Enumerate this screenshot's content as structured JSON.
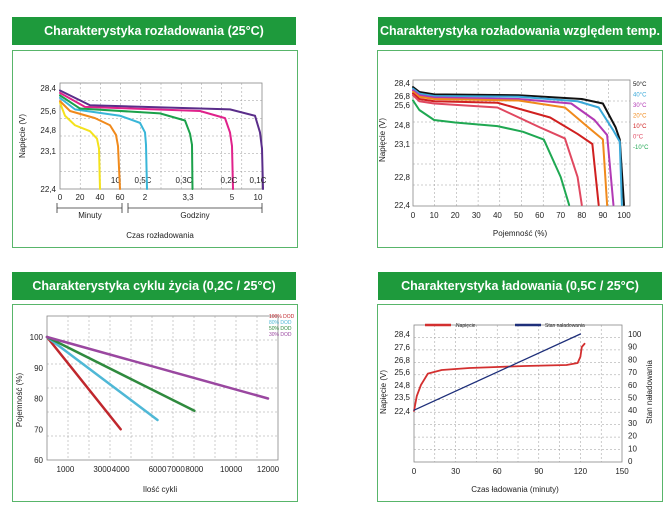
{
  "chart_data": [
    {
      "type": "line",
      "title": "Charakterystyka rozładowania (25°C)",
      "ylabel": "Napięcie (V)",
      "xlabel": "Czas rozładowania",
      "yticks": [
        "28,4",
        "25,6",
        "24,8",
        "23,1",
        "22,4"
      ],
      "xticks_minutes": [
        "0",
        "20",
        "40",
        "60"
      ],
      "xticks_hours": [
        "2",
        "3,3",
        "5",
        "10"
      ],
      "xgroups": [
        "Minuty",
        "Godziny"
      ],
      "grid": true,
      "series": [
        {
          "name": "1C",
          "color": "#f4e21c",
          "points": [
            [
              0,
              26.6
            ],
            [
              5,
              25.4
            ],
            [
              15,
              25.0
            ],
            [
              30,
              24.7
            ],
            [
              37,
              24.1
            ],
            [
              39,
              23.3
            ],
            [
              40,
              22.4
            ]
          ]
        },
        {
          "name": "0,5C",
          "color": "#f08a1c",
          "points": [
            [
              0,
              26.8
            ],
            [
              10,
              25.6
            ],
            [
              35,
              25.3
            ],
            [
              50,
              25.0
            ],
            [
              56,
              24.4
            ],
            [
              58,
              23.5
            ],
            [
              60,
              22.4
            ]
          ]
        },
        {
          "name": "0,3C",
          "color": "#39b6d8",
          "points": [
            [
              0,
              27.2
            ],
            [
              15,
              25.8
            ],
            [
              60,
              25.4
            ],
            [
              80,
              25.1
            ],
            [
              85,
              24.6
            ],
            [
              86,
              23.6
            ],
            [
              87,
              22.4
            ]
          ]
        },
        {
          "name": "0,2C",
          "color": "#1ba14a",
          "points": [
            [
              0,
              27.5
            ],
            [
              20,
              25.9
            ],
            [
              100,
              25.5
            ],
            [
              125,
              25.2
            ],
            [
              130,
              24.5
            ],
            [
              132,
              23.6
            ],
            [
              132.5,
              22.4
            ]
          ]
        },
        {
          "name": "0,2C",
          "color": "#e0228b",
          "points": [
            [
              0,
              27.8
            ],
            [
              25,
              26.1
            ],
            [
              140,
              25.6
            ],
            [
              165,
              25.3
            ],
            [
              170,
              24.6
            ],
            [
              172,
              23.5
            ],
            [
              173,
              22.4
            ]
          ]
        },
        {
          "name": "0,1C",
          "color": "#5a2d8a",
          "points": [
            [
              0,
              28.1
            ],
            [
              30,
              26.3
            ],
            [
              170,
              25.8
            ],
            [
              195,
              25.4
            ],
            [
              200,
              24.6
            ],
            [
              202,
              23.3
            ],
            [
              203,
              22.4
            ]
          ]
        }
      ]
    },
    {
      "type": "line",
      "title": "Charakterystyka rozładowania względem temp.",
      "ylabel": "Napięcie (V)",
      "xlabel": "Pojemność (%)",
      "yticks": [
        "28,4",
        "26,8",
        "25,6",
        "24,8",
        "23,1",
        "22,8",
        "22,4"
      ],
      "xticks": [
        "0",
        "10",
        "20",
        "30",
        "40",
        "50",
        "60",
        "70",
        "80",
        "90",
        "100"
      ],
      "ylim": [
        22.4,
        28.4
      ],
      "xlim": [
        0,
        100
      ],
      "grid": true,
      "legend": "right",
      "series": [
        {
          "name": "50°C",
          "color": "#111111",
          "points": [
            [
              0,
              27.9
            ],
            [
              3,
              27.3
            ],
            [
              10,
              27.0
            ],
            [
              50,
              26.9
            ],
            [
              80,
              26.4
            ],
            [
              90,
              25.8
            ],
            [
              96,
              24.6
            ],
            [
              98,
              23.5
            ],
            [
              100,
              22.4
            ]
          ]
        },
        {
          "name": "40°C",
          "color": "#39a8d8",
          "points": [
            [
              0,
              27.7
            ],
            [
              3,
              27.1
            ],
            [
              10,
              26.8
            ],
            [
              50,
              26.7
            ],
            [
              78,
              26.1
            ],
            [
              88,
              25.5
            ],
            [
              95,
              24.3
            ],
            [
              98,
              23.3
            ],
            [
              99,
              22.4
            ]
          ]
        },
        {
          "name": "30°C",
          "color": "#b23ab5",
          "points": [
            [
              0,
              27.5
            ],
            [
              3,
              26.9
            ],
            [
              10,
              26.6
            ],
            [
              50,
              26.4
            ],
            [
              75,
              25.8
            ],
            [
              86,
              25.0
            ],
            [
              92,
              23.9
            ],
            [
              95,
              22.4
            ]
          ]
        },
        {
          "name": "20°C",
          "color": "#f08a1c",
          "points": [
            [
              0,
              27.3
            ],
            [
              3,
              26.7
            ],
            [
              10,
              26.4
            ],
            [
              50,
              26.2
            ],
            [
              72,
              25.5
            ],
            [
              83,
              24.6
            ],
            [
              90,
              23.5
            ],
            [
              92,
              22.4
            ]
          ]
        },
        {
          "name": "10°C",
          "color": "#d02020",
          "points": [
            [
              0,
              27.1
            ],
            [
              3,
              26.4
            ],
            [
              10,
              26.1
            ],
            [
              40,
              25.9
            ],
            [
              65,
              25.1
            ],
            [
              78,
              24.0
            ],
            [
              85,
              23.1
            ],
            [
              88,
              22.4
            ]
          ]
        },
        {
          "name": "0°C",
          "color": "#e04860",
          "points": [
            [
              0,
              26.9
            ],
            [
              3,
              26.1
            ],
            [
              10,
              25.8
            ],
            [
              40,
              25.5
            ],
            [
              60,
              24.6
            ],
            [
              72,
              23.6
            ],
            [
              78,
              22.8
            ],
            [
              80,
              22.4
            ]
          ]
        },
        {
          "name": "-10°C",
          "color": "#1fa852",
          "points": [
            [
              0,
              26.2
            ],
            [
              3,
              25.4
            ],
            [
              10,
              25.0
            ],
            [
              20,
              24.9
            ],
            [
              40,
              24.7
            ],
            [
              52,
              24.2
            ],
            [
              62,
              23.5
            ],
            [
              70,
              22.8
            ],
            [
              74,
              22.4
            ]
          ]
        }
      ]
    },
    {
      "type": "line",
      "title": "Charakterystyka cyklu życia  (0,2C / 25°C)",
      "ylabel": "Pojemność (%)",
      "xlabel": "Ilość cykli",
      "xlim": [
        0,
        12000
      ],
      "ylim": [
        60,
        100
      ],
      "xticks": [
        "1000",
        "3000",
        "4000",
        "6000",
        "7000",
        "8000",
        "10000",
        "12000"
      ],
      "yticks": [
        "100",
        "90",
        "80",
        "70",
        "60"
      ],
      "grid": true,
      "legend": "top-right",
      "series": [
        {
          "name": "100% DOD",
          "color": "#c0272d",
          "points": [
            [
              0,
              100
            ],
            [
              4000,
              70
            ]
          ]
        },
        {
          "name": "80% DOD",
          "color": "#4fb8d6",
          "points": [
            [
              0,
              100
            ],
            [
              6000,
              73
            ]
          ]
        },
        {
          "name": "50% DOD",
          "color": "#2f8a3e",
          "points": [
            [
              0,
              100
            ],
            [
              8000,
              76
            ]
          ]
        },
        {
          "name": "30% DOD",
          "color": "#9a47a0",
          "points": [
            [
              0,
              100
            ],
            [
              12000,
              80
            ]
          ]
        }
      ]
    },
    {
      "type": "line",
      "title": "Charakterystyka ładowania  (0,5C / 25°C)",
      "ylabel": "Napięcie (V)",
      "y2label": "Stan naładowania",
      "xlabel": "Czas ładowania (minuty)",
      "xticks": [
        "0",
        "30",
        "60",
        "90",
        "120",
        "150"
      ],
      "yticks": [
        "28,4",
        "27,6",
        "26,8",
        "25,6",
        "24,8",
        "23,5",
        "22,4"
      ],
      "y2ticks": [
        "100",
        "90",
        "80",
        "70",
        "60",
        "50",
        "40",
        "30",
        "20",
        "10",
        "0"
      ],
      "grid": true,
      "legend": "top",
      "series": [
        {
          "name": "Napięcie",
          "color": "#d32f2f",
          "points": [
            [
              0,
              22.4
            ],
            [
              2,
              23.6
            ],
            [
              5,
              24.8
            ],
            [
              10,
              25.5
            ],
            [
              20,
              25.8
            ],
            [
              40,
              26.0
            ],
            [
              60,
              26.1
            ],
            [
              80,
              26.2
            ],
            [
              110,
              26.3
            ],
            [
              118,
              26.5
            ],
            [
              120,
              27.0
            ],
            [
              121,
              27.6
            ],
            [
              123,
              27.8
            ]
          ]
        },
        {
          "name": "Stan naładowania",
          "color": "#1e2f7a",
          "points": [
            [
              0,
              40
            ],
            [
              120,
              100
            ]
          ]
        }
      ]
    }
  ]
}
